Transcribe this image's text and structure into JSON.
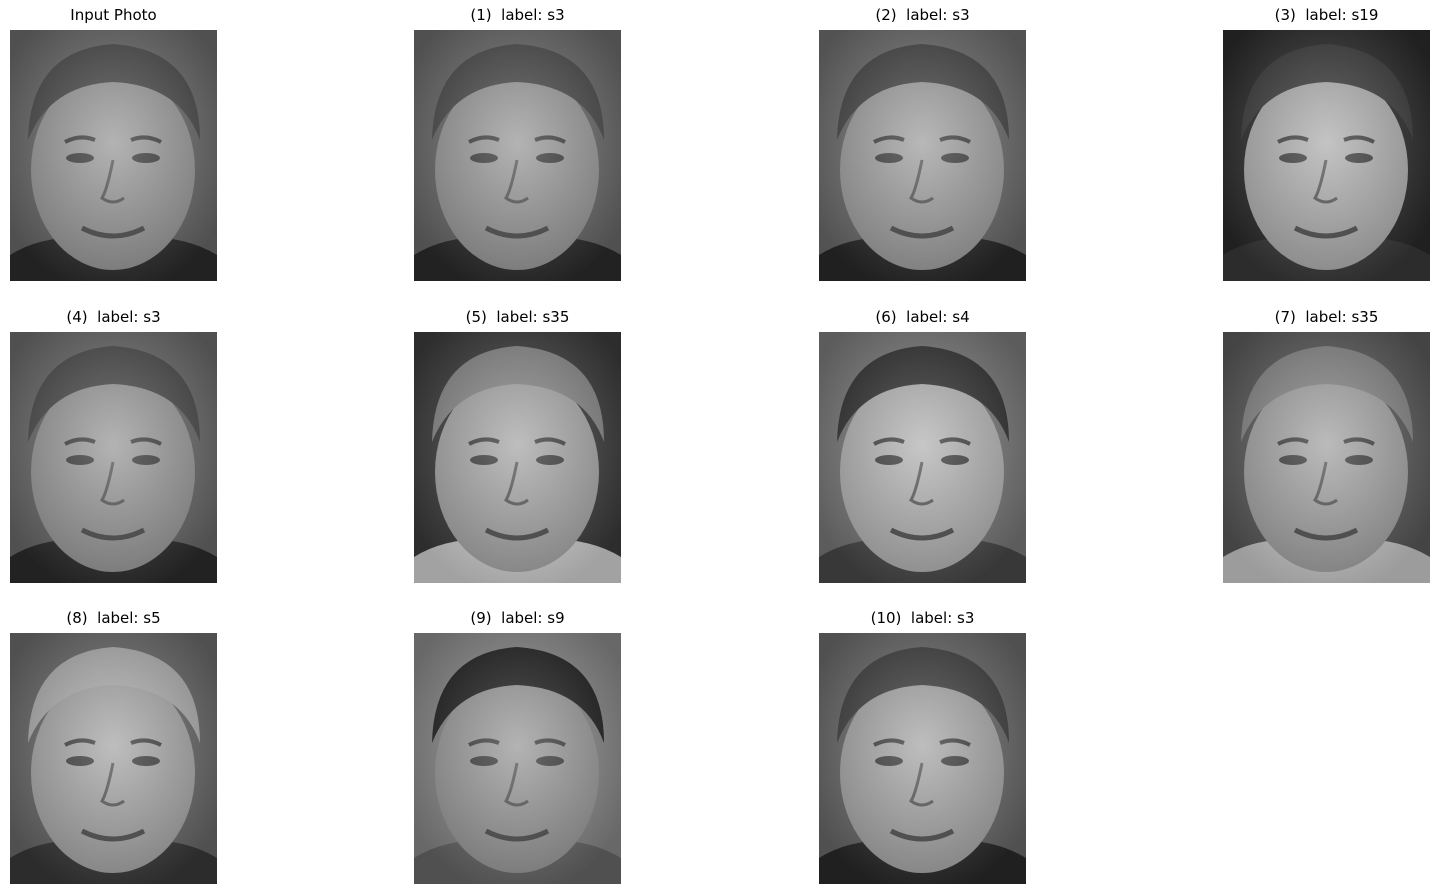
{
  "figure": {
    "panels": [
      {
        "title": "Input Photo",
        "image_name": "input-face-photo",
        "bg": "#6b6b6b",
        "skin": "#9a9a9a",
        "hair": "#4a4a4a",
        "shirt": "#2e2e2e"
      },
      {
        "title": "(1)  label: s3",
        "image_name": "result-face-s3",
        "bg": "#6b6b6b",
        "skin": "#9a9a9a",
        "hair": "#4a4a4a",
        "shirt": "#2e2e2e"
      },
      {
        "title": "(2)  label: s3",
        "image_name": "result-face-s3",
        "bg": "#6e6e6e",
        "skin": "#a0a0a0",
        "hair": "#454545",
        "shirt": "#2b2b2b"
      },
      {
        "title": "(3)  label: s19",
        "image_name": "result-face-s19",
        "bg": "#2a2a2a",
        "skin": "#b0b0b0",
        "hair": "#3a3a3a",
        "shirt": "#3a3a3a"
      },
      {
        "title": "(4)  label: s3",
        "image_name": "result-face-s3",
        "bg": "#6b6b6b",
        "skin": "#9a9a9a",
        "hair": "#4a4a4a",
        "shirt": "#2e2e2e"
      },
      {
        "title": "(5)  label: s35",
        "image_name": "result-face-s35",
        "bg": "#3c3c3c",
        "skin": "#a8a8a8",
        "hair": "#8a8a8a",
        "shirt": "#d8d8d8"
      },
      {
        "title": "(6)  label: s4",
        "image_name": "result-face-s4",
        "bg": "#7a7a7a",
        "skin": "#b4b4b4",
        "hair": "#2f2f2f",
        "shirt": "#4a4a4a"
      },
      {
        "title": "(7)  label: s35",
        "image_name": "result-face-s35",
        "bg": "#5a5a5a",
        "skin": "#a4a4a4",
        "hair": "#888888",
        "shirt": "#d0d0d0"
      },
      {
        "title": "(8)  label: s5",
        "image_name": "result-face-s5",
        "bg": "#6a6a6a",
        "skin": "#a8a8a8",
        "hair": "#b2b2b2",
        "shirt": "#3a3a3a"
      },
      {
        "title": "(9)  label: s9",
        "image_name": "result-face-s9",
        "bg": "#8a8a8a",
        "skin": "#9a9a9a",
        "hair": "#1e1e1e",
        "shirt": "#6a6a6a"
      },
      {
        "title": "(10)  label: s3",
        "image_name": "result-face-s3",
        "bg": "#6a6a6a",
        "skin": "#a8a8a8",
        "hair": "#3e3e3e",
        "shirt": "#2a2a2a"
      }
    ]
  }
}
